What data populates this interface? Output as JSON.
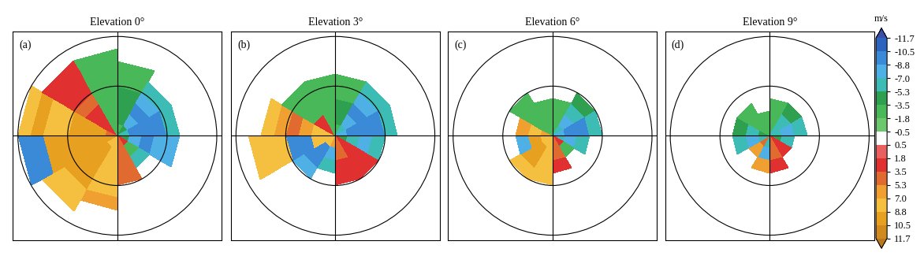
{
  "chart_data": [
    {
      "type": "heatmap",
      "title": "Elevation 0°",
      "panel_label": "(a)",
      "xlim": [
        -2.1,
        2.1
      ],
      "ylim": [
        -2.1,
        2.1
      ],
      "tick_labels": false,
      "range_rings": [
        1,
        2
      ],
      "azimuth_edges": [
        0,
        30,
        60,
        90,
        120,
        150,
        180,
        210,
        240,
        270,
        300,
        330,
        360
      ],
      "range_edges": [
        0,
        0.25,
        0.5,
        0.75,
        1.0,
        1.25,
        1.5,
        1.75,
        2.0
      ],
      "values": [
        [
          -3,
          -5,
          -7,
          -5,
          2,
          5,
          7,
          8,
          9,
          5,
          2,
          -2
        ],
        [
          -4,
          -8,
          -9,
          -8,
          -3,
          5,
          8,
          9,
          10,
          9,
          3,
          -3
        ],
        [
          -5,
          -9,
          -10,
          -9,
          -6,
          4,
          8,
          9,
          10,
          9,
          3,
          -3
        ],
        [
          -4,
          -8,
          -9,
          -8,
          null,
          5,
          7,
          9,
          10,
          9,
          4,
          -2
        ],
        [
          -3,
          -6,
          -7,
          -8,
          null,
          null,
          8,
          9,
          10,
          8,
          3,
          -2
        ],
        [
          -2,
          null,
          null,
          null,
          null,
          null,
          6,
          8,
          9,
          8,
          3,
          -2
        ],
        [
          null,
          null,
          null,
          null,
          null,
          null,
          null,
          7,
          -9,
          9,
          2,
          -3
        ],
        [
          null,
          null,
          null,
          null,
          null,
          null,
          null,
          null,
          -10,
          8,
          null,
          null
        ]
      ]
    },
    {
      "type": "heatmap",
      "title": "Elevation 3°",
      "panel_label": "(b)",
      "xlim": [
        -2.1,
        2.1
      ],
      "ylim": [
        -2.1,
        2.1
      ],
      "tick_labels": false,
      "range_rings": [
        1,
        2
      ],
      "azimuth_edges": [
        0,
        30,
        60,
        90,
        120,
        150,
        180,
        210,
        240,
        270,
        300,
        330,
        360
      ],
      "range_edges": [
        0,
        0.25,
        0.5,
        0.75,
        1.0,
        1.25,
        1.5,
        1.75,
        2.0
      ],
      "values": [
        [
          -3,
          -6,
          -8,
          -5,
          3,
          4,
          6,
          8,
          8,
          7,
          3,
          -2
        ],
        [
          -4,
          -8,
          -9,
          -7,
          3,
          5,
          -8,
          -9,
          8,
          7,
          2,
          -3
        ],
        [
          -4,
          -9,
          -10,
          -8,
          2,
          3,
          -7,
          -10,
          -9,
          6,
          -2,
          -3
        ],
        [
          -3,
          -8,
          -9,
          -6,
          3,
          2,
          null,
          -8,
          -9,
          5,
          -3,
          -3
        ],
        [
          -2,
          -6,
          -7,
          null,
          null,
          null,
          null,
          null,
          7,
          6,
          -2,
          -2
        ],
        [
          null,
          null,
          null,
          null,
          null,
          null,
          null,
          null,
          8,
          8,
          null,
          null
        ],
        [
          null,
          null,
          null,
          null,
          null,
          null,
          null,
          null,
          8,
          null,
          null,
          null
        ],
        [
          null,
          null,
          null,
          null,
          null,
          null,
          null,
          null,
          null,
          null,
          null,
          null
        ]
      ]
    },
    {
      "type": "heatmap",
      "title": "Elevation 6°",
      "panel_label": "(c)",
      "xlim": [
        -2.1,
        2.1
      ],
      "ylim": [
        -2.1,
        2.1
      ],
      "tick_labels": false,
      "range_rings": [
        1,
        2
      ],
      "azimuth_edges": [
        0,
        30,
        60,
        90,
        120,
        150,
        180,
        210,
        240,
        270,
        300,
        330,
        360
      ],
      "range_edges": [
        0,
        0.25,
        0.5,
        0.75,
        1.0,
        1.25,
        1.5,
        1.75,
        2.0
      ],
      "values": [
        [
          -3,
          -6,
          -8,
          -6,
          3,
          5,
          7,
          8,
          8,
          6,
          -2,
          -2
        ],
        [
          -3,
          -8,
          -9,
          -8,
          -3,
          4,
          8,
          9,
          9,
          7,
          -2,
          -3
        ],
        [
          -2,
          -7,
          -9,
          -7,
          null,
          3,
          8,
          9,
          -8,
          6,
          -3,
          -2
        ],
        [
          null,
          -5,
          -7,
          null,
          null,
          null,
          7,
          8,
          null,
          null,
          -3,
          null
        ],
        [
          null,
          null,
          null,
          null,
          null,
          null,
          null,
          null,
          null,
          null,
          null,
          null
        ],
        [
          null,
          null,
          null,
          null,
          null,
          null,
          null,
          null,
          null,
          null,
          null,
          null
        ],
        [
          null,
          null,
          null,
          null,
          null,
          null,
          null,
          null,
          null,
          null,
          null,
          null
        ],
        [
          null,
          null,
          null,
          null,
          null,
          null,
          null,
          null,
          null,
          null,
          null,
          null
        ]
      ]
    },
    {
      "type": "heatmap",
      "title": "Elevation 9°",
      "panel_label": "(d)",
      "xlim": [
        -2.1,
        2.1
      ],
      "ylim": [
        -2.1,
        2.1
      ],
      "tick_labels": false,
      "range_rings": [
        1,
        2
      ],
      "azimuth_edges": [
        0,
        30,
        60,
        90,
        120,
        150,
        180,
        210,
        240,
        270,
        300,
        330,
        360
      ],
      "range_edges": [
        0,
        0.25,
        0.5,
        0.75,
        1.0,
        1.25,
        1.5,
        1.75,
        2.0
      ],
      "values": [
        [
          -3,
          -6,
          -7,
          -5,
          3,
          4,
          -7,
          5,
          -7,
          -5,
          -3,
          -2
        ],
        [
          -3,
          -7,
          -8,
          -6,
          3,
          4,
          -8,
          6,
          -8,
          -6,
          -3,
          -2
        ],
        [
          -2,
          -5,
          -6,
          null,
          null,
          3,
          6,
          null,
          -7,
          -5,
          -2,
          null
        ],
        [
          null,
          null,
          null,
          null,
          null,
          null,
          null,
          null,
          null,
          null,
          null,
          null
        ],
        [
          null,
          null,
          null,
          null,
          null,
          null,
          null,
          null,
          null,
          null,
          null,
          null
        ],
        [
          null,
          null,
          null,
          null,
          null,
          null,
          null,
          null,
          null,
          null,
          null,
          null
        ],
        [
          null,
          null,
          null,
          null,
          null,
          null,
          null,
          null,
          null,
          null,
          null,
          null
        ],
        [
          null,
          null,
          null,
          null,
          null,
          null,
          null,
          null,
          null,
          null,
          null,
          null
        ]
      ]
    }
  ],
  "colorbar": {
    "title": "m/s",
    "ticks": [
      -11.7,
      -10.5,
      -8.8,
      -7.0,
      -5.3,
      -3.5,
      -1.8,
      -0.5,
      0.5,
      1.8,
      3.5,
      5.3,
      7.0,
      8.8,
      10.5,
      11.7
    ],
    "colors": [
      "#3a4fa8",
      "#2c64c0",
      "#3b8ad8",
      "#4fb0e6",
      "#3cbcb4",
      "#2ea050",
      "#48b858",
      "#6cc86c",
      "#ffffff",
      "#e86060",
      "#e03030",
      "#e06a30",
      "#f0a030",
      "#f5c040",
      "#e8a020",
      "#d08a20",
      "#b87820"
    ]
  }
}
